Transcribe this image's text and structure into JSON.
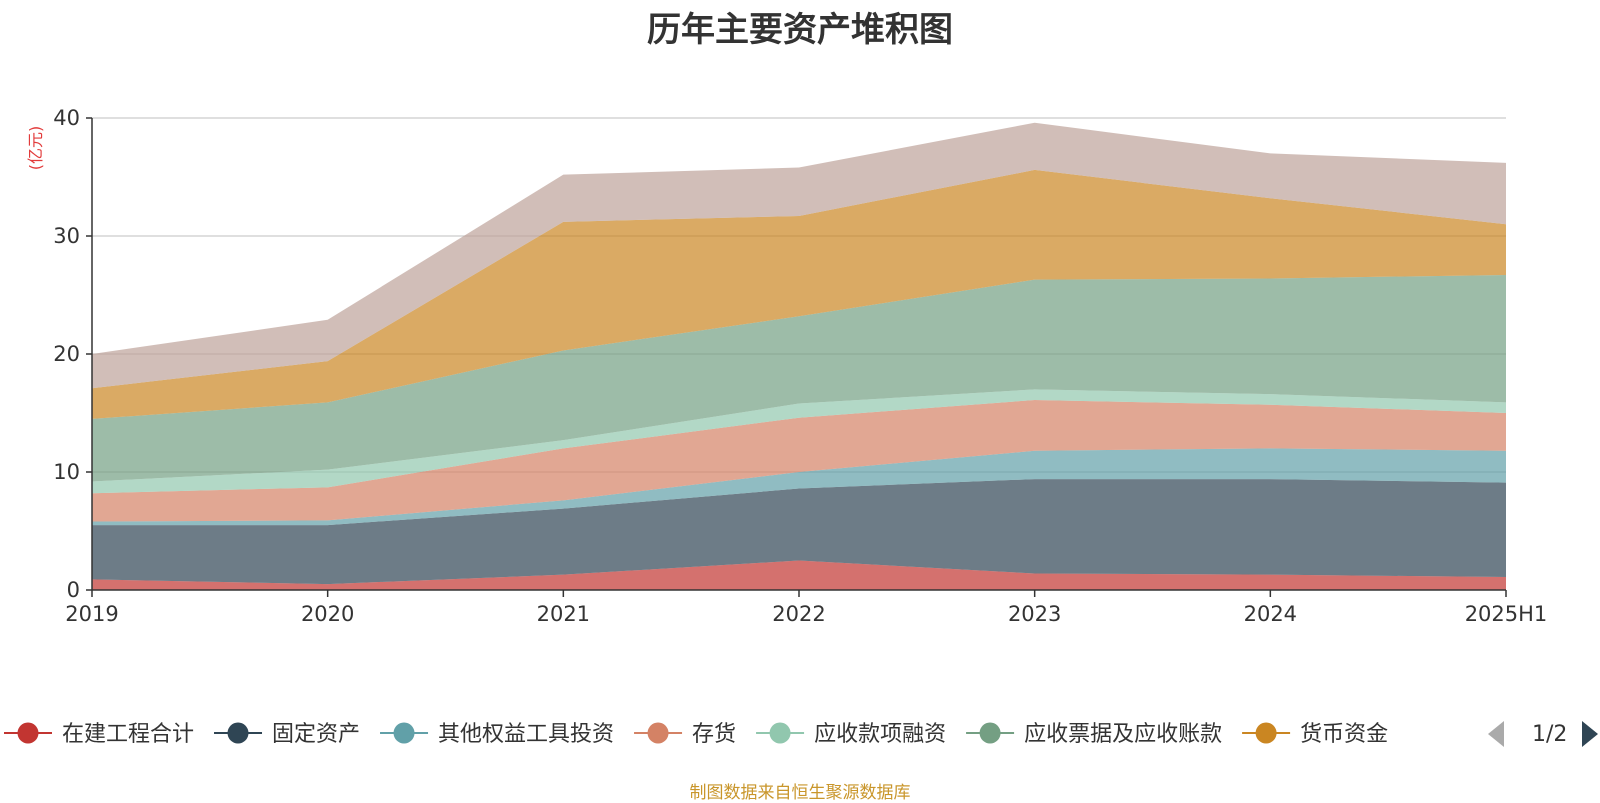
{
  "title": "历年主要资产堆积图",
  "source_text": "制图数据来自恒生聚源数据库",
  "legend_page": "1/2",
  "chart_data": {
    "type": "area",
    "stacked": true,
    "title": "历年主要资产堆积图",
    "ylabel": "(亿元)",
    "xlabel": "",
    "categories": [
      "2019",
      "2020",
      "2021",
      "2022",
      "2023",
      "2024",
      "2025H1"
    ],
    "ylim": [
      0,
      40
    ],
    "yticks": [
      0,
      10,
      20,
      30,
      40
    ],
    "grid": true,
    "legend_position": "bottom",
    "series": [
      {
        "name": "在建工程合计",
        "color": "#c23531",
        "values": [
          0.9,
          0.5,
          1.3,
          2.5,
          1.4,
          1.3,
          1.1
        ]
      },
      {
        "name": "固定资产",
        "color": "#2f4554",
        "values": [
          4.6,
          5.0,
          5.6,
          6.1,
          8.0,
          8.1,
          8.0
        ]
      },
      {
        "name": "其他权益工具投资",
        "color": "#61a0a8",
        "values": [
          0.3,
          0.4,
          0.7,
          1.4,
          2.4,
          2.6,
          2.7
        ]
      },
      {
        "name": "存货",
        "color": "#d48265",
        "values": [
          2.4,
          2.8,
          4.4,
          4.6,
          4.3,
          3.7,
          3.2
        ]
      },
      {
        "name": "应收款项融资",
        "color": "#91c7ae",
        "values": [
          1.0,
          1.5,
          0.7,
          1.2,
          0.9,
          0.9,
          0.9
        ]
      },
      {
        "name": "应收票据及应收账款",
        "color": "#749f83",
        "values": [
          5.3,
          5.7,
          7.6,
          7.4,
          9.3,
          9.8,
          10.8
        ]
      },
      {
        "name": "货币资金",
        "color": "#ca8622",
        "values": [
          2.6,
          3.5,
          10.9,
          8.5,
          9.3,
          6.8,
          4.3
        ]
      },
      {
        "name": "",
        "color": "#bda29a",
        "values": [
          2.9,
          3.5,
          4.0,
          4.1,
          4.0,
          3.8,
          5.2
        ]
      }
    ]
  }
}
